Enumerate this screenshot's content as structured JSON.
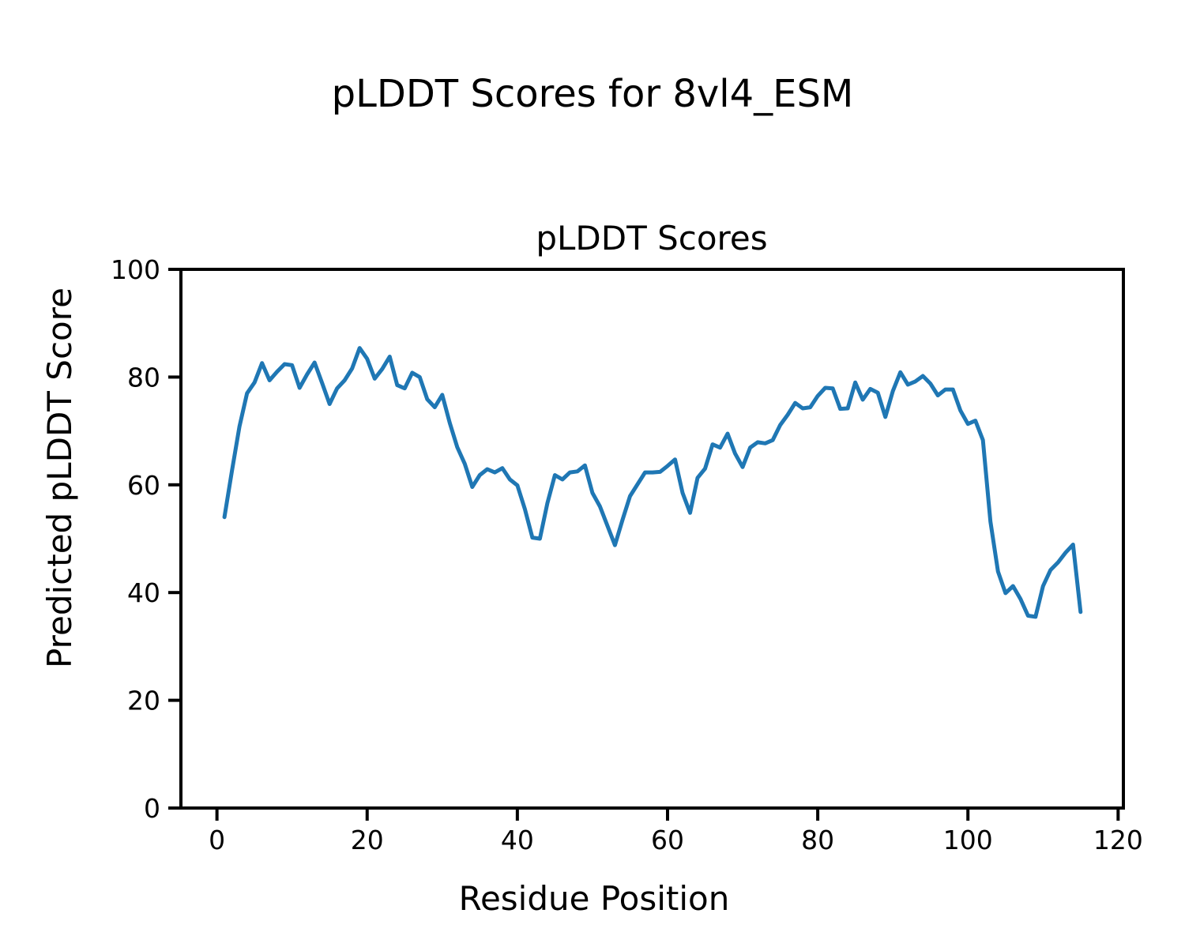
{
  "figure": {
    "suptitle": "pLDDT Scores for 8vl4_ESM",
    "axes_title": "pLDDT Scores",
    "xlabel": "Residue Position",
    "ylabel": "Predicted pLDDT Score"
  },
  "chart_data": {
    "type": "line",
    "title": "pLDDT Scores",
    "suptitle": "pLDDT Scores for 8vl4_ESM",
    "xlabel": "Residue Position",
    "ylabel": "Predicted pLDDT Score",
    "series_name": "pLDDT",
    "line_color": "#1f77b4",
    "line_width": 5,
    "grid": false,
    "legend": null,
    "xlim": [
      -4.8,
      120.7
    ],
    "ylim": [
      0,
      100
    ],
    "xticks": [
      0,
      20,
      40,
      60,
      80,
      100,
      120
    ],
    "yticks": [
      0,
      20,
      40,
      60,
      80,
      100
    ],
    "x": [
      1,
      2,
      3,
      4,
      5,
      6,
      7,
      8,
      9,
      10,
      11,
      12,
      13,
      14,
      15,
      16,
      17,
      18,
      19,
      20,
      21,
      22,
      23,
      24,
      25,
      26,
      27,
      28,
      29,
      30,
      31,
      32,
      33,
      34,
      35,
      36,
      37,
      38,
      39,
      40,
      41,
      42,
      43,
      44,
      45,
      46,
      47,
      48,
      49,
      50,
      51,
      52,
      53,
      54,
      55,
      56,
      57,
      58,
      59,
      60,
      61,
      62,
      63,
      64,
      65,
      66,
      67,
      68,
      69,
      70,
      71,
      72,
      73,
      74,
      75,
      76,
      77,
      78,
      79,
      80,
      81,
      82,
      83,
      84,
      85,
      86,
      87,
      88,
      89,
      90,
      91,
      92,
      93,
      94,
      95,
      96,
      97,
      98,
      99,
      100,
      101,
      102,
      103,
      104,
      105,
      106,
      107,
      108,
      109,
      110,
      111,
      112,
      113,
      114,
      115
    ],
    "y": [
      54.0,
      62.6,
      70.8,
      77.0,
      79.0,
      82.6,
      79.4,
      81.0,
      82.4,
      82.2,
      78.0,
      80.5,
      82.7,
      78.9,
      75.0,
      77.9,
      79.4,
      81.6,
      85.4,
      83.4,
      79.7,
      81.5,
      83.8,
      78.5,
      77.9,
      80.8,
      80.0,
      75.9,
      74.4,
      76.7,
      71.5,
      67.0,
      63.9,
      59.6,
      61.8,
      62.9,
      62.3,
      63.1,
      61.0,
      59.9,
      55.5,
      50.2,
      50.0,
      56.6,
      61.8,
      61.0,
      62.3,
      62.5,
      63.6,
      58.5,
      56.0,
      52.4,
      48.8,
      53.5,
      57.9,
      60.1,
      62.3,
      62.3,
      62.4,
      63.5,
      64.7,
      58.5,
      54.8,
      61.3,
      63.0,
      67.5,
      66.9,
      69.5,
      65.8,
      63.3,
      66.9,
      67.9,
      67.7,
      68.3,
      71.1,
      73.0,
      75.2,
      74.2,
      74.4,
      76.5,
      78.0,
      77.9,
      74.1,
      74.2,
      79.0,
      75.8,
      77.8,
      77.1,
      72.6,
      77.4,
      80.9,
      78.6,
      79.2,
      80.2,
      78.8,
      76.6,
      77.7,
      77.7,
      73.8,
      71.3,
      71.9,
      68.3,
      53.2,
      43.9,
      39.9,
      41.2,
      38.8,
      35.7,
      35.5,
      41.2,
      44.2,
      45.6,
      47.4,
      48.9,
      36.4
    ]
  }
}
